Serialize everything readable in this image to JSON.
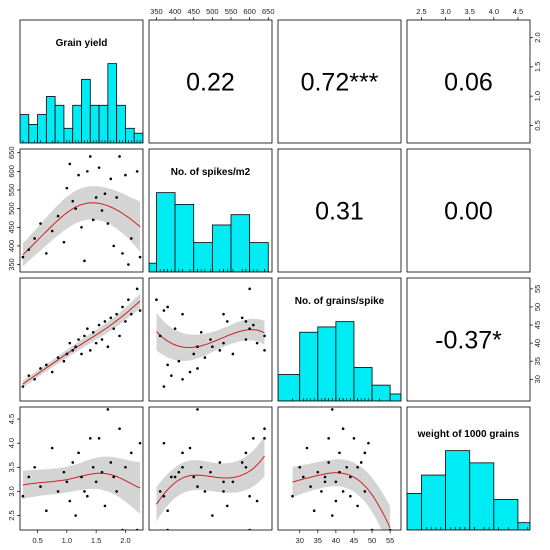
{
  "chart_data": {
    "type": "scatterplot-matrix",
    "variables": [
      "Grain yield",
      "No. of spikes/m2",
      "No. of grains/spike",
      "weight of 1000 grains"
    ],
    "axis_ticks": [
      {
        "variable": "Grain yield",
        "values": [
          "0.5",
          "1.0",
          "1.5",
          "2.0"
        ]
      },
      {
        "variable": "No. of spikes/m2",
        "values": [
          "350",
          "400",
          "450",
          "500",
          "550",
          "600",
          "650"
        ]
      },
      {
        "variable": "No. of grains/spike",
        "values": [
          "30",
          "35",
          "40",
          "45",
          "50",
          "55"
        ]
      },
      {
        "variable": "weight of 1000 grains",
        "values": [
          "2.5",
          "3.0",
          "3.5",
          "4.0",
          "4.5"
        ]
      }
    ],
    "ranges": [
      [
        0.2,
        2.3
      ],
      [
        330,
        660
      ],
      [
        24,
        58
      ],
      [
        2.2,
        4.75
      ]
    ],
    "correlations": [
      {
        "row": 0,
        "col": 1,
        "label": "0.22"
      },
      {
        "row": 0,
        "col": 2,
        "label": "0.72***"
      },
      {
        "row": 0,
        "col": 3,
        "label": "0.06"
      },
      {
        "row": 1,
        "col": 2,
        "label": "0.31"
      },
      {
        "row": 1,
        "col": 3,
        "label": "0.00"
      },
      {
        "row": 2,
        "col": 3,
        "label": "-0.37*"
      }
    ],
    "histograms": [
      {
        "variable": "Grain yield",
        "bins": [
          0.2,
          0.35,
          0.5,
          0.65,
          0.8,
          0.95,
          1.1,
          1.25,
          1.4,
          1.55,
          1.7,
          1.85,
          2.0,
          2.15,
          2.3
        ],
        "density": [
          0.58,
          0.38,
          0.58,
          0.95,
          0.77,
          0.3,
          0.77,
          1.3,
          0.77,
          0.77,
          1.62,
          0.77,
          0.3,
          0.2
        ]
      },
      {
        "variable": "No. of spikes/m2",
        "bins": [
          330,
          350,
          400,
          450,
          500,
          550,
          600,
          650
        ],
        "density": [
          0.3,
          2.7,
          2.3,
          1.0,
          1.6,
          1.95,
          1.0
        ]
      },
      {
        "variable": "No. of grains/spike",
        "bins": [
          24,
          30,
          35,
          40,
          45,
          50,
          55,
          58
        ],
        "density": [
          1.5,
          3.9,
          4.2,
          4.5,
          1.9,
          0.9,
          0.4
        ]
      },
      {
        "variable": "weight of 1000 grains",
        "bins": [
          2.2,
          2.5,
          3.0,
          3.5,
          4.0,
          4.5,
          4.75
        ],
        "density": [
          0.6,
          0.9,
          1.3,
          1.1,
          0.5,
          0.12
        ]
      }
    ],
    "points": [
      {
        "yield": 0.25,
        "spikes": 370,
        "grains": 28,
        "tgw": 2.9
      },
      {
        "yield": 0.35,
        "spikes": 390,
        "grains": 31,
        "tgw": 3.3
      },
      {
        "yield": 0.45,
        "spikes": 420,
        "grains": 30,
        "tgw": 3.5
      },
      {
        "yield": 0.55,
        "spikes": 460,
        "grains": 33,
        "tgw": 3.1
      },
      {
        "yield": 0.65,
        "spikes": 380,
        "grains": 34,
        "tgw": 2.6
      },
      {
        "yield": 0.75,
        "spikes": 440,
        "grains": 32,
        "tgw": 3.9
      },
      {
        "yield": 0.85,
        "spikes": 480,
        "grains": 36,
        "tgw": 3.0
      },
      {
        "yield": 0.95,
        "spikes": 410,
        "grains": 35,
        "tgw": 3.4
      },
      {
        "yield": 1.0,
        "spikes": 555,
        "grains": 37,
        "tgw": 3.2
      },
      {
        "yield": 1.05,
        "spikes": 620,
        "grains": 40,
        "tgw": 2.8
      },
      {
        "yield": 1.1,
        "spikes": 520,
        "grains": 38,
        "tgw": 3.6
      },
      {
        "yield": 1.15,
        "spikes": 500,
        "grains": 39,
        "tgw": 2.5
      },
      {
        "yield": 1.2,
        "spikes": 590,
        "grains": 41,
        "tgw": 3.8
      },
      {
        "yield": 1.25,
        "spikes": 450,
        "grains": 37,
        "tgw": 3.3
      },
      {
        "yield": 1.3,
        "spikes": 360,
        "grains": 42,
        "tgw": 3.0
      },
      {
        "yield": 1.35,
        "spikes": 600,
        "grains": 44,
        "tgw": 2.9
      },
      {
        "yield": 1.4,
        "spikes": 640,
        "grains": 38,
        "tgw": 4.1
      },
      {
        "yield": 1.45,
        "spikes": 470,
        "grains": 43,
        "tgw": 3.5
      },
      {
        "yield": 1.5,
        "spikes": 530,
        "grains": 40,
        "tgw": 3.2
      },
      {
        "yield": 1.55,
        "spikes": 610,
        "grains": 45,
        "tgw": 4.1
      },
      {
        "yield": 1.6,
        "spikes": 495,
        "grains": 41,
        "tgw": 3.4
      },
      {
        "yield": 1.65,
        "spikes": 540,
        "grains": 46,
        "tgw": 2.7
      },
      {
        "yield": 1.7,
        "spikes": 460,
        "grains": 39,
        "tgw": 4.7
      },
      {
        "yield": 1.75,
        "spikes": 580,
        "grains": 47,
        "tgw": 3.6
      },
      {
        "yield": 1.8,
        "spikes": 400,
        "grains": 44,
        "tgw": 3.3
      },
      {
        "yield": 1.85,
        "spikes": 530,
        "grains": 48,
        "tgw": 3.0
      },
      {
        "yield": 1.9,
        "spikes": 640,
        "grains": 42,
        "tgw": 4.3
      },
      {
        "yield": 1.95,
        "spikes": 380,
        "grains": 50,
        "tgw": 2.2
      },
      {
        "yield": 2.0,
        "spikes": 590,
        "grains": 46,
        "tgw": 3.5
      },
      {
        "yield": 2.05,
        "spikes": 350,
        "grains": 52,
        "tgw": 2.1
      },
      {
        "yield": 2.1,
        "spikes": 420,
        "grains": 48,
        "tgw": 3.8
      },
      {
        "yield": 2.2,
        "spikes": 600,
        "grains": 55,
        "tgw": 2.2
      },
      {
        "yield": 2.25,
        "spikes": 370,
        "grains": 49,
        "tgw": 4.0
      }
    ],
    "smooth_color": "#cc2222",
    "band_color": "#cccccc",
    "hist_color": "#00ecf5",
    "point_color": "#000000",
    "grid": false
  }
}
